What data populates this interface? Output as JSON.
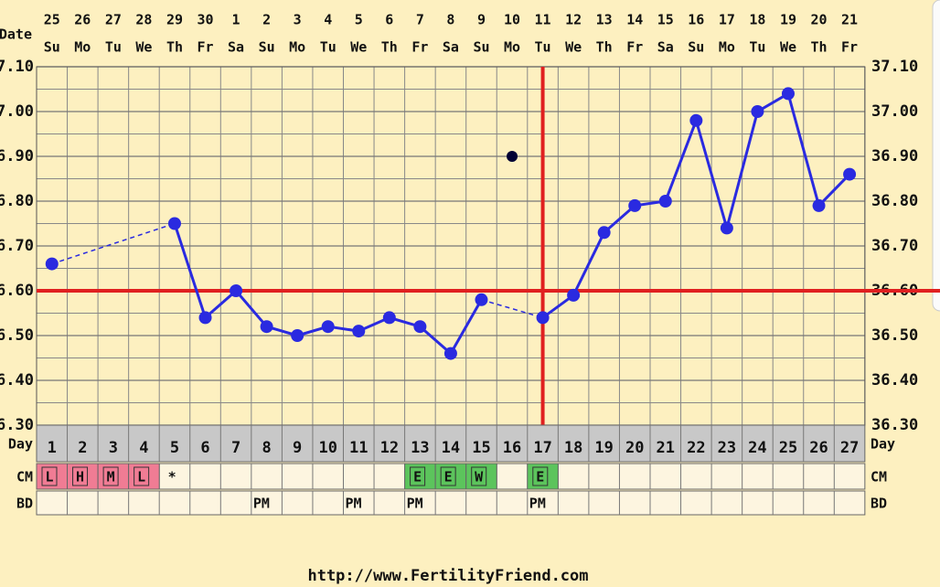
{
  "chart_data": {
    "type": "line",
    "date_label": "Date",
    "dates": [
      "25",
      "26",
      "27",
      "28",
      "29",
      "30",
      "1",
      "2",
      "3",
      "4",
      "5",
      "6",
      "7",
      "8",
      "9",
      "10",
      "11",
      "12",
      "13",
      "14",
      "15",
      "16",
      "17",
      "18",
      "19",
      "20",
      "21"
    ],
    "weekdays": [
      "Su",
      "Mo",
      "Tu",
      "We",
      "Th",
      "Fr",
      "Sa",
      "Su",
      "Mo",
      "Tu",
      "We",
      "Th",
      "Fr",
      "Sa",
      "Su",
      "Mo",
      "Tu",
      "We",
      "Th",
      "Fr",
      "Sa",
      "Su",
      "Mo",
      "Tu",
      "We",
      "Th",
      "Fr"
    ],
    "x": [
      1,
      2,
      3,
      4,
      5,
      6,
      7,
      8,
      9,
      10,
      11,
      12,
      13,
      14,
      15,
      16,
      17,
      18,
      19,
      20,
      21,
      22,
      23,
      24,
      25,
      26,
      27
    ],
    "values": [
      36.66,
      null,
      null,
      null,
      36.75,
      36.54,
      36.6,
      36.52,
      36.5,
      36.52,
      36.51,
      36.54,
      36.52,
      36.46,
      36.58,
      null,
      36.54,
      36.59,
      36.73,
      36.79,
      36.8,
      36.98,
      36.74,
      37.0,
      37.04,
      36.79,
      36.86
    ],
    "color": "#2a2ae0",
    "discarded": {
      "x": 16,
      "value": 36.9,
      "color": "#000033"
    },
    "coverline": 36.6,
    "ovulation_day": 17,
    "marker_line_color": "#e02020",
    "ylim": [
      36.3,
      37.1
    ],
    "yticks": [
      {
        "value": 36.3,
        "label": "36.30"
      },
      {
        "value": 36.4,
        "label": "36.40"
      },
      {
        "value": 36.5,
        "label": "36.50"
      },
      {
        "value": 36.6,
        "label": "36.60"
      },
      {
        "value": 36.7,
        "label": "36.70"
      },
      {
        "value": 36.8,
        "label": "36.80"
      },
      {
        "value": 36.9,
        "label": "36.90"
      },
      {
        "value": 37.0,
        "label": "37.00"
      },
      {
        "value": 37.1,
        "label": "37.10"
      }
    ],
    "grid": true,
    "row_labels": [
      "Day",
      "CM",
      "BD"
    ],
    "cm": [
      "L",
      "H",
      "M",
      "L",
      "*",
      null,
      null,
      null,
      null,
      null,
      null,
      null,
      "E",
      "E",
      "W",
      null,
      "E",
      null,
      null,
      null,
      null,
      null,
      null,
      null,
      null,
      null,
      null
    ],
    "cm_colors": {
      "L": "#f07c94",
      "H": "#f07c94",
      "M": "#f07c94",
      "E": "#5cc45c",
      "W": "#5cc45c"
    },
    "bd": [
      null,
      null,
      null,
      null,
      null,
      null,
      null,
      "PM",
      null,
      null,
      "PM",
      null,
      "PM",
      null,
      null,
      null,
      "PM",
      null,
      null,
      null,
      null,
      null,
      null,
      null,
      null,
      null,
      null
    ],
    "footer": "http://www.FertilityFriend.com"
  }
}
